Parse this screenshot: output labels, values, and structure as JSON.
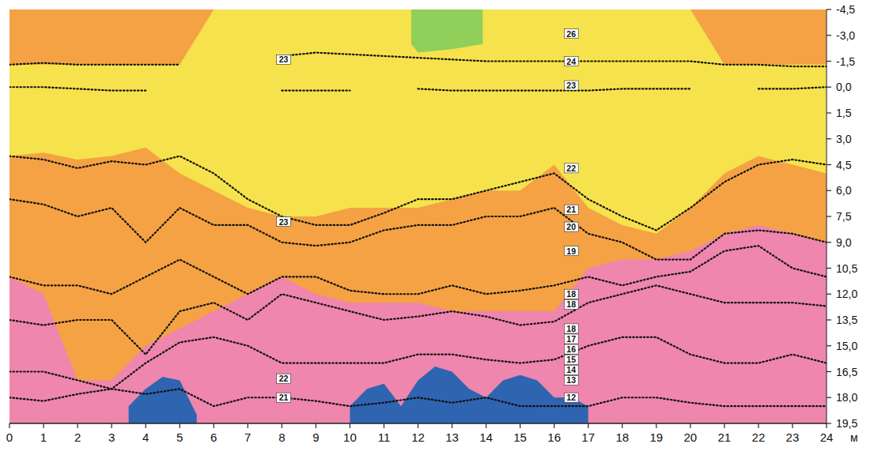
{
  "chart_data": {
    "type": "profile",
    "x_label": "м",
    "xlim": [
      0,
      24
    ],
    "xticks": [
      0,
      1,
      2,
      3,
      4,
      5,
      6,
      7,
      8,
      9,
      10,
      11,
      12,
      13,
      14,
      15,
      16,
      17,
      18,
      19,
      20,
      21,
      22,
      23,
      24
    ],
    "ylim": [
      19.5,
      -4.5
    ],
    "yticks": [
      {
        "value": -4.5,
        "label": "-4,5"
      },
      {
        "value": -3.0,
        "label": "-3,0"
      },
      {
        "value": -1.5,
        "label": "-1,5"
      },
      {
        "value": 0.0,
        "label": "0,0"
      },
      {
        "value": 1.5,
        "label": "1,5"
      },
      {
        "value": 3.0,
        "label": "3,0"
      },
      {
        "value": 4.5,
        "label": "4,5"
      },
      {
        "value": 6.0,
        "label": "6,0"
      },
      {
        "value": 7.5,
        "label": "7,5"
      },
      {
        "value": 9.0,
        "label": "9,0"
      },
      {
        "value": 10.5,
        "label": "10,5"
      },
      {
        "value": 12.0,
        "label": "12,0"
      },
      {
        "value": 13.5,
        "label": "13,5"
      },
      {
        "value": 15.0,
        "label": "15,0"
      },
      {
        "value": 16.5,
        "label": "16,5"
      },
      {
        "value": 18.0,
        "label": "18,0"
      },
      {
        "value": 19.5,
        "label": "19,5"
      }
    ],
    "series": [
      {
        "type": "area",
        "color": "#ee86ad",
        "x": [
          0,
          24
        ],
        "top": [
          -4.5,
          -4.5
        ],
        "values": [
          19.5,
          19.5
        ]
      },
      {
        "type": "area",
        "color": "#f4a244",
        "x": [
          0,
          1,
          2,
          3,
          4,
          5,
          6,
          7,
          8,
          9,
          10,
          11,
          12,
          13,
          14,
          15,
          16,
          17,
          18,
          19,
          20,
          21,
          22,
          23,
          24
        ],
        "top": [
          -4.5,
          -4.5,
          -4.5,
          -4.5,
          -4.5,
          -4.5,
          -4.5,
          -4.5,
          -4.5,
          -4.5,
          -4.5,
          -4.5,
          -4.5,
          -4.5,
          -4.5,
          -4.5,
          -4.5,
          -4.5,
          -4.5,
          -4.5,
          -4.5,
          -4.5,
          -4.5,
          -4.5,
          -4.5
        ],
        "values": [
          11,
          12,
          17,
          17,
          15,
          14,
          13,
          12,
          11,
          12,
          12.5,
          12.5,
          12.5,
          13,
          13,
          13,
          13,
          10.5,
          10,
          10,
          9.5,
          8.5,
          8,
          8.5,
          9
        ]
      },
      {
        "type": "area",
        "color": "#f6e24c",
        "x": [
          0,
          1,
          2,
          3,
          4,
          5,
          6,
          7,
          8,
          9,
          10,
          11,
          12,
          13,
          14,
          15,
          16,
          17,
          18,
          19,
          20,
          21,
          22,
          23,
          24
        ],
        "top": [
          -1.3,
          -1.3,
          -1.3,
          -1.3,
          -1.3,
          -1.3,
          -4.5,
          -4.5,
          -4.5,
          -4.5,
          -4.5,
          -4.5,
          -4.5,
          -4.5,
          -4.5,
          -4.5,
          -4.5,
          -4.5,
          -4.5,
          -4.5,
          -4.5,
          -1.3,
          -1.3,
          -1.3,
          -1.3
        ],
        "values": [
          4,
          3.8,
          4.2,
          4,
          3.5,
          5,
          6,
          7,
          7.5,
          7.5,
          7,
          7,
          7,
          6.5,
          6,
          6,
          4.5,
          7,
          8,
          8.5,
          7,
          5,
          4,
          4.5,
          5
        ]
      },
      {
        "type": "area",
        "color": "#8fcf5a",
        "x": [
          11.8,
          12,
          13,
          13.9
        ],
        "top": [
          -4.5,
          -4.5,
          -4.5,
          -4.5
        ],
        "values": [
          -2.5,
          -2,
          -2.2,
          -2.5
        ]
      },
      {
        "type": "area",
        "color": "#2f64b0",
        "x": [
          3.5,
          4,
          4.5,
          5,
          5.5,
          6,
          10,
          10.5,
          11,
          11.5,
          12,
          12.5,
          13,
          13.5,
          14,
          14.5,
          15,
          15.5,
          16,
          16.5,
          17,
          17.5
        ],
        "top": [
          18.5,
          17.5,
          16.8,
          17,
          19,
          null,
          18.5,
          17.5,
          17.2,
          18.5,
          17,
          16.2,
          16.5,
          17.5,
          18,
          17,
          16.7,
          17,
          18,
          18,
          18.5,
          null
        ],
        "values": [
          19.5,
          19.5,
          19.5,
          19.5,
          19.5,
          null,
          19.5,
          19.5,
          19.5,
          19.5,
          19.5,
          19.5,
          19.5,
          19.5,
          19.5,
          19.5,
          19.5,
          19.5,
          19.5,
          19.5,
          19.5,
          null
        ]
      },
      {
        "type": "line",
        "line_style": "dotted",
        "color": "#111111",
        "x": [
          0,
          1,
          2,
          3,
          4,
          5,
          6,
          7,
          8,
          9,
          10,
          11,
          12,
          13,
          14,
          15,
          16,
          17,
          18,
          19,
          20,
          21,
          22,
          23,
          24
        ],
        "values": [
          0,
          0,
          0.1,
          0.2,
          0.2,
          null,
          null,
          null,
          0.2,
          0.2,
          0.2,
          null,
          0.1,
          0.2,
          0.2,
          0.2,
          0.2,
          0.2,
          0.1,
          0.1,
          0.1,
          null,
          0.1,
          0.1,
          0
        ]
      },
      {
        "type": "line",
        "line_style": "dotted",
        "color": "#111111",
        "x": [
          0,
          1,
          2,
          3,
          4,
          5,
          6,
          7,
          8,
          9,
          10,
          11,
          12,
          13,
          14,
          15,
          16,
          17,
          18,
          19,
          20,
          21,
          22,
          23,
          24
        ],
        "values": [
          -1.3,
          -1.4,
          -1.3,
          -1.3,
          -1.3,
          -1.3,
          null,
          null,
          -1.8,
          -2,
          -1.9,
          -1.8,
          -1.7,
          -1.6,
          -1.5,
          -1.5,
          -1.5,
          -1.5,
          -1.5,
          -1.5,
          -1.5,
          -1.3,
          -1.3,
          -1.2,
          -1.2
        ]
      },
      {
        "type": "line",
        "line_style": "dotted",
        "color": "#111111",
        "x": [
          0,
          1,
          2,
          3,
          4,
          5,
          6,
          7,
          8,
          9,
          10,
          11,
          12,
          13,
          14,
          15,
          16,
          17,
          18,
          19,
          20,
          21,
          22,
          23,
          24
        ],
        "values": [
          4,
          4.2,
          4.7,
          4.3,
          4.5,
          4,
          5,
          6.5,
          7.5,
          8,
          8,
          7.3,
          6.5,
          6.5,
          6,
          5.5,
          5,
          6.5,
          7.5,
          8.3,
          7,
          5.5,
          4.5,
          4.2,
          4.5
        ]
      },
      {
        "type": "line",
        "line_style": "dotted",
        "color": "#111111",
        "x": [
          0,
          1,
          2,
          3,
          4,
          5,
          6,
          7,
          8,
          9,
          10,
          11,
          12,
          13,
          14,
          15,
          16,
          17,
          18,
          19,
          20,
          21,
          22,
          23,
          24
        ],
        "values": [
          6.5,
          6.8,
          7.5,
          7,
          9,
          7,
          8,
          8,
          9,
          9.2,
          9,
          8.3,
          8,
          8,
          7.5,
          7.5,
          7,
          8.5,
          9,
          10,
          10,
          8.5,
          8.3,
          8.5,
          9
        ]
      },
      {
        "type": "line",
        "line_style": "dotted",
        "color": "#111111",
        "x": [
          0,
          1,
          2,
          3,
          4,
          5,
          6,
          7,
          8,
          9,
          10,
          11,
          12,
          13,
          14,
          15,
          16,
          17,
          18,
          19,
          20,
          21,
          22,
          23,
          24
        ],
        "values": [
          11,
          11.5,
          11.5,
          12,
          11,
          10,
          11,
          12,
          11,
          11,
          11.8,
          12,
          12,
          11.5,
          12,
          11.8,
          11.5,
          11,
          11.5,
          11,
          10.7,
          9.5,
          9.2,
          10.5,
          11
        ]
      },
      {
        "type": "line",
        "line_style": "dotted",
        "color": "#111111",
        "x": [
          0,
          1,
          2,
          3,
          4,
          5,
          6,
          7,
          8,
          9,
          10,
          11,
          12,
          13,
          14,
          15,
          16,
          17,
          18,
          19,
          20,
          21,
          22,
          23,
          24
        ],
        "values": [
          13.5,
          13.8,
          13.5,
          13.5,
          15.5,
          13,
          12.5,
          13.5,
          12,
          12.5,
          13,
          13.5,
          13.3,
          13,
          13.3,
          13.8,
          13.6,
          12.5,
          12,
          11.5,
          12,
          12.5,
          12.5,
          12.5,
          12.7
        ]
      },
      {
        "type": "line",
        "line_style": "dotted",
        "color": "#111111",
        "x": [
          0,
          1,
          2,
          3,
          4,
          5,
          6,
          7,
          8,
          9,
          10,
          11,
          12,
          13,
          14,
          15,
          16,
          17,
          18,
          19,
          20,
          21,
          22,
          23,
          24
        ],
        "values": [
          16.5,
          16.5,
          17,
          17.5,
          16,
          14.8,
          14.5,
          15,
          16,
          16,
          16,
          16,
          15.5,
          15.5,
          15.8,
          16,
          15.8,
          15,
          14.5,
          14.5,
          15.5,
          16,
          16,
          15.5,
          16
        ]
      },
      {
        "type": "line",
        "line_style": "dotted",
        "color": "#111111",
        "x": [
          0,
          1,
          2,
          3,
          4,
          5,
          6,
          7,
          8,
          9,
          10,
          11,
          12,
          13,
          14,
          15,
          16,
          17,
          18,
          19,
          20,
          21,
          22,
          23,
          24
        ],
        "values": [
          18,
          18.2,
          17.8,
          17.5,
          17.8,
          17.5,
          18.5,
          18,
          18,
          18.2,
          18.5,
          18.3,
          18,
          18.3,
          18,
          18.5,
          18.5,
          18.5,
          18,
          18,
          18.3,
          18.5,
          18.5,
          18.5,
          18.5
        ]
      }
    ],
    "annotations": [
      {
        "text": "23",
        "x": 8.05,
        "y": -1.6
      },
      {
        "text": "23",
        "x": 8.05,
        "y": 7.8
      },
      {
        "text": "22",
        "x": 8.05,
        "y": 16.9
      },
      {
        "text": "21",
        "x": 8.05,
        "y": 18.0
      },
      {
        "text": "26",
        "x": 16.5,
        "y": -3.1
      },
      {
        "text": "24",
        "x": 16.5,
        "y": -1.5
      },
      {
        "text": "23",
        "x": 16.5,
        "y": -0.1
      },
      {
        "text": "22",
        "x": 16.5,
        "y": 4.7
      },
      {
        "text": "21",
        "x": 16.5,
        "y": 7.1
      },
      {
        "text": "20",
        "x": 16.5,
        "y": 8.1
      },
      {
        "text": "19",
        "x": 16.5,
        "y": 9.5
      },
      {
        "text": "18",
        "x": 16.5,
        "y": 12.0
      },
      {
        "text": "18",
        "x": 16.5,
        "y": 12.6
      },
      {
        "text": "18",
        "x": 16.5,
        "y": 14.0
      },
      {
        "text": "17",
        "x": 16.5,
        "y": 14.6
      },
      {
        "text": "16",
        "x": 16.5,
        "y": 15.2
      },
      {
        "text": "15",
        "x": 16.5,
        "y": 15.8
      },
      {
        "text": "14",
        "x": 16.5,
        "y": 16.4
      },
      {
        "text": "13",
        "x": 16.5,
        "y": 17.0
      },
      {
        "text": "12",
        "x": 16.5,
        "y": 18.0
      }
    ]
  }
}
